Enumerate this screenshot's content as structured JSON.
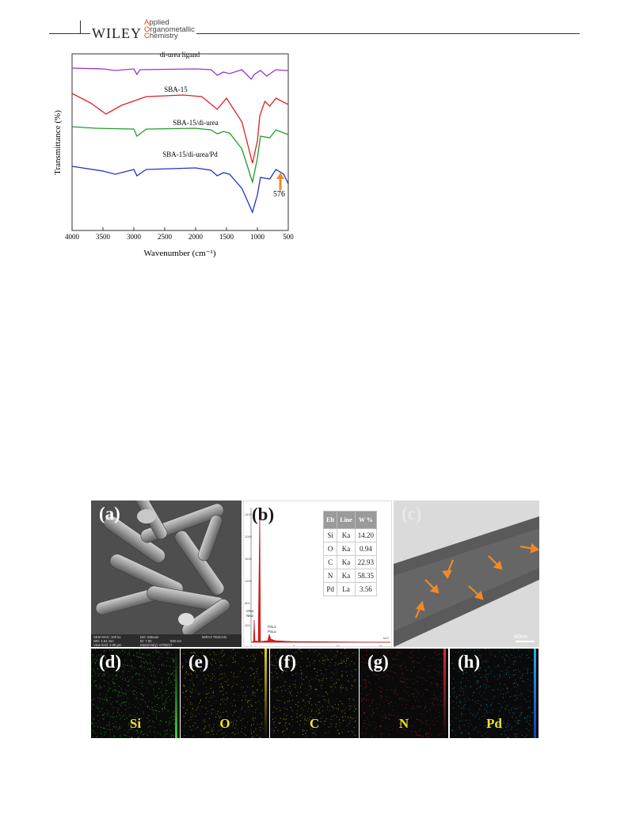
{
  "header": {
    "publisher": "WILEY",
    "journal_lines": [
      {
        "cap": "A",
        "rest": "pplied"
      },
      {
        "cap": "O",
        "rest": "rganometallic"
      },
      {
        "cap": "C",
        "rest": "hemistry"
      }
    ]
  },
  "figure_ftir": {
    "chart_data": {
      "type": "line",
      "xlabel": "Wavenumber (cm⁻¹)",
      "ylabel": "Transmittance (%)",
      "xlim": [
        4000,
        500
      ],
      "x_ticks": [
        4000,
        3500,
        3000,
        2500,
        2000,
        1500,
        1000,
        500
      ],
      "series": [
        {
          "name": "di-urea ligand",
          "color": "#9b35c9"
        },
        {
          "name": "SBA-15",
          "color": "#e02020"
        },
        {
          "name": "SBA-15/di-urea",
          "color": "#1f9b2a"
        },
        {
          "name": "SBA-15/di-urea/Pd",
          "color": "#2433c9"
        }
      ],
      "annotation": {
        "text": "576",
        "x": 576,
        "color": "#f08a24"
      }
    }
  },
  "figure_eds": {
    "panels": {
      "a": "(a)",
      "b": "(b)",
      "c": "(c)",
      "d": "(d)",
      "e": "(e)",
      "f": "(f)",
      "g": "(g)",
      "h": "(h)"
    },
    "sem_info": {
      "row1": [
        "SEM MAG: 100 kx",
        "Det: InBeam",
        "MIRA3 TESCAN"
      ],
      "row2": [
        "WD: 4.84 mm",
        "BI: 7.00",
        "500 nm"
      ],
      "row3": [
        "View field: 2.08 µm",
        "Date(m/d/y): 07/06/17"
      ]
    },
    "eds_table": {
      "headers": [
        "Elt",
        "Line",
        "W %"
      ],
      "rows": [
        [
          "Si",
          "Ka",
          "14.20"
        ],
        [
          "O",
          "Ka",
          "0.94"
        ],
        [
          "C",
          "Ka",
          "22.93"
        ],
        [
          "N",
          "Ka",
          "58.35"
        ],
        [
          "Pd",
          "La",
          "3.56"
        ]
      ]
    },
    "eds_peak_labels": {
      "o": "OKα",
      "n": "NKα",
      "pd": "PdL3",
      "pd2": "PdLα",
      "kev": "keV"
    },
    "eds_axis": {
      "y_ticks": [
        "2400",
        "2000",
        "1600",
        "1200",
        "800",
        "400"
      ],
      "x_ticks": [
        "0",
        "5",
        "10",
        "15"
      ]
    },
    "tem_scale": "40nm",
    "maps": [
      {
        "label": "(d)",
        "element": "Si",
        "color": "#3bd42a"
      },
      {
        "label": "(e)",
        "element": "O",
        "color": "#e6d41c"
      },
      {
        "label": "(f)",
        "element": "C",
        "color": "#d8cf35"
      },
      {
        "label": "(g)",
        "element": "N",
        "color": "#e03030"
      },
      {
        "label": "(h)",
        "element": "Pd",
        "color": "#2ab0e8"
      }
    ]
  }
}
